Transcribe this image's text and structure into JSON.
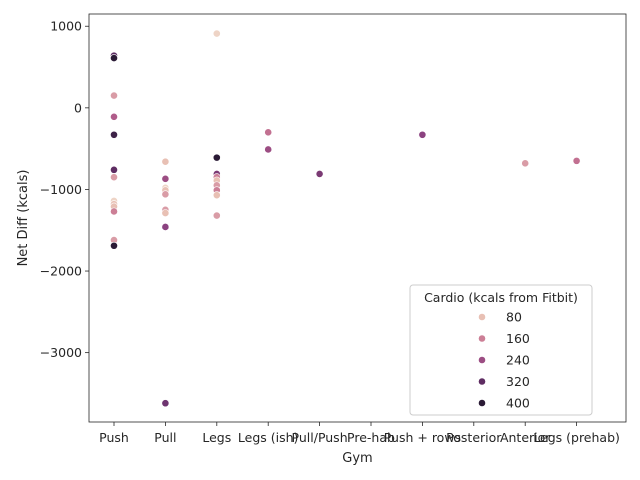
{
  "chart_data": {
    "type": "scatter",
    "xlabel": "Gym",
    "ylabel": "Net Diff (kcals)",
    "categories": [
      "Push",
      "Pull",
      "Legs",
      "Legs (ish)",
      "Pull/Push",
      "Pre-hab",
      "Push + rows",
      "Posterior",
      "Anterior",
      "Legs (prehab)"
    ],
    "ylim": [
      -3850,
      1150
    ],
    "yticks": [
      1000,
      0,
      -1000,
      -2000,
      -3000
    ],
    "grid": false,
    "legend": {
      "title": "Cardio (kcals from Fitbit)",
      "placement": "lower-right",
      "entries": [
        {
          "label": "80",
          "color": "#e8c0b4"
        },
        {
          "label": "160",
          "color": "#cc7f96"
        },
        {
          "label": "240",
          "color": "#9c4d83"
        },
        {
          "label": "320",
          "color": "#5e2c62"
        },
        {
          "label": "400",
          "color": "#2a1a35"
        }
      ]
    },
    "points": [
      {
        "x": "Push",
        "y": 640,
        "color": "#5e2c62"
      },
      {
        "x": "Push",
        "y": 610,
        "color": "#2a1a35"
      },
      {
        "x": "Push",
        "y": 150,
        "color": "#d99ca6"
      },
      {
        "x": "Push",
        "y": -110,
        "color": "#b05c8a"
      },
      {
        "x": "Push",
        "y": -330,
        "color": "#3d2247"
      },
      {
        "x": "Push",
        "y": -760,
        "color": "#5e2c62"
      },
      {
        "x": "Push",
        "y": -850,
        "color": "#d99ca6"
      },
      {
        "x": "Push",
        "y": -1140,
        "color": "#eed4c6"
      },
      {
        "x": "Push",
        "y": -1180,
        "color": "#e8c0b4"
      },
      {
        "x": "Push",
        "y": -1210,
        "color": "#e8c0b4"
      },
      {
        "x": "Push",
        "y": -1270,
        "color": "#cc7f96"
      },
      {
        "x": "Push",
        "y": -1620,
        "color": "#d99ca6"
      },
      {
        "x": "Push",
        "y": -1690,
        "color": "#2a1a35"
      },
      {
        "x": "Pull",
        "y": -660,
        "color": "#e8c0b4"
      },
      {
        "x": "Pull",
        "y": -870,
        "color": "#9c4d83"
      },
      {
        "x": "Pull",
        "y": -980,
        "color": "#eed4c6"
      },
      {
        "x": "Pull",
        "y": -1010,
        "color": "#e8c0b4"
      },
      {
        "x": "Pull",
        "y": -1060,
        "color": "#d99ca6"
      },
      {
        "x": "Pull",
        "y": -1250,
        "color": "#d99ca6"
      },
      {
        "x": "Pull",
        "y": -1290,
        "color": "#e8c0b4"
      },
      {
        "x": "Pull",
        "y": -1460,
        "color": "#8b4280"
      },
      {
        "x": "Pull",
        "y": -3620,
        "color": "#6e3470"
      },
      {
        "x": "Legs",
        "y": 910,
        "color": "#eed4c6"
      },
      {
        "x": "Legs",
        "y": -610,
        "color": "#2a1a35"
      },
      {
        "x": "Legs",
        "y": -810,
        "color": "#7b3a74"
      },
      {
        "x": "Legs",
        "y": -850,
        "color": "#cc7f96"
      },
      {
        "x": "Legs",
        "y": -890,
        "color": "#e8c0b4"
      },
      {
        "x": "Legs",
        "y": -950,
        "color": "#d99ca6"
      },
      {
        "x": "Legs",
        "y": -1010,
        "color": "#cc7f96"
      },
      {
        "x": "Legs",
        "y": -1070,
        "color": "#e8c0b4"
      },
      {
        "x": "Legs",
        "y": -1320,
        "color": "#d99ca6"
      },
      {
        "x": "Legs (ish)",
        "y": -300,
        "color": "#c27091"
      },
      {
        "x": "Legs (ish)",
        "y": -510,
        "color": "#9c4d83"
      },
      {
        "x": "Pull/Push",
        "y": -810,
        "color": "#7b3a74"
      },
      {
        "x": "Push + rows",
        "y": -330,
        "color": "#8b4280"
      },
      {
        "x": "Anterior",
        "y": -680,
        "color": "#d99ca6"
      },
      {
        "x": "Legs (prehab)",
        "y": -650,
        "color": "#c27091"
      }
    ]
  }
}
